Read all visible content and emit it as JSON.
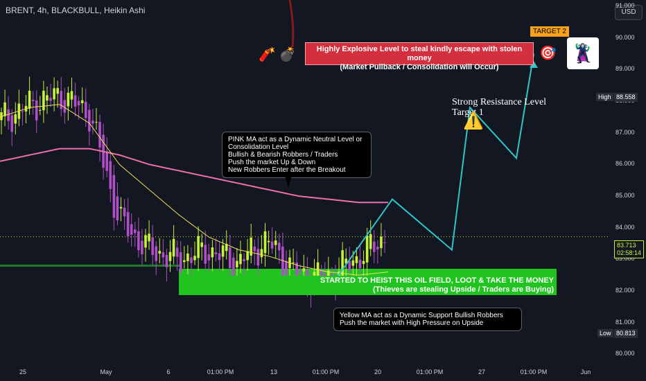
{
  "header": {
    "title": "BRENT, 4h, BLACKBULL, Heikin Ashi",
    "currency": "USD"
  },
  "price_axis": {
    "ticks": [
      "91.000",
      "90.000",
      "89.000",
      "88.000",
      "87.000",
      "86.000",
      "85.000",
      "84.000",
      "83.000",
      "82.000",
      "81.000",
      "80.000"
    ],
    "high_label": "High",
    "high_value": "88.558",
    "low_label": "Low",
    "low_value": "80.813",
    "last_price": "83.713",
    "countdown": "02:58:14"
  },
  "time_axis": {
    "ticks": [
      "25",
      "May",
      "6",
      "01:00 PM",
      "13",
      "01:00 PM",
      "20",
      "01:00 PM",
      "27",
      "01:00 PM",
      "Jun"
    ]
  },
  "annotations": {
    "pink_note": [
      "PINK MA act as a Dynamic Neutral Level or",
      "Consolidation Level",
      "Bullish & Bearish Robbers / Traders",
      "Push the market Up & Down",
      "New Robbers Enter after the Breakout"
    ],
    "yellow_note": [
      "Yellow MA act as a Dynamic Support Bullish Robbers",
      "Push the market with High Pressure on Upside"
    ],
    "red_banner": [
      "Highly Explosive Level to steal kindly escape with stolen money",
      "(Market Pullback / Consolidation will Occur)"
    ],
    "green_banner": [
      "STARTED TO HEIST THIS OIL FIELD, LOOT & TAKE THE MONEY",
      "(Thieves are stealing Upside / Traders are Buying)"
    ],
    "resistance": [
      "Strong Resistance Level",
      "Target 1"
    ],
    "target2": "TARGET 2"
  },
  "colors": {
    "bull": "#c6f23a",
    "bear": "#b04fc7",
    "pink_ma": "#f06fa8",
    "yellow_ma": "#f2e15a",
    "projection": "#2ec6c9",
    "green_zone": "#21c321",
    "red_zone": "#d32f3f"
  },
  "icons": [
    "warning-icon",
    "target-icon",
    "dynamite-icon",
    "bomb-icon",
    "thief-icon"
  ],
  "chart_data": {
    "type": "candlestick",
    "ylim": [
      79.7,
      91.2
    ],
    "x": [
      "Apr 24",
      "Apr 26",
      "Apr 28",
      "Apr 30",
      "May 2",
      "May 4",
      "May 6",
      "May 8",
      "May 10",
      "May 12",
      "May 14",
      "May 16",
      "May 18",
      "May 20"
    ],
    "close_approx": [
      87.4,
      87.9,
      88.2,
      87.6,
      84.2,
      83.3,
      83.0,
      83.3,
      82.9,
      83.6,
      82.5,
      82.4,
      83.0,
      83.7
    ],
    "pink_ma_approx": [
      86.1,
      86.3,
      86.5,
      86.5,
      86.3,
      86.0,
      85.8,
      85.6,
      85.4,
      85.2,
      85.0,
      84.9,
      84.8,
      84.8
    ],
    "yellow_ma_approx": [
      87.5,
      87.8,
      87.9,
      87.3,
      86.0,
      85.2,
      84.4,
      83.7,
      83.3,
      83.1,
      82.8,
      82.6,
      82.5,
      82.6
    ],
    "projection_path": [
      82.3,
      84.9,
      83.3,
      87.8,
      86.2,
      89.5
    ],
    "green_zone": [
      81.9,
      82.7
    ],
    "support_line": 82.8,
    "last_price": 83.713,
    "high": 88.558,
    "low": 80.813
  }
}
